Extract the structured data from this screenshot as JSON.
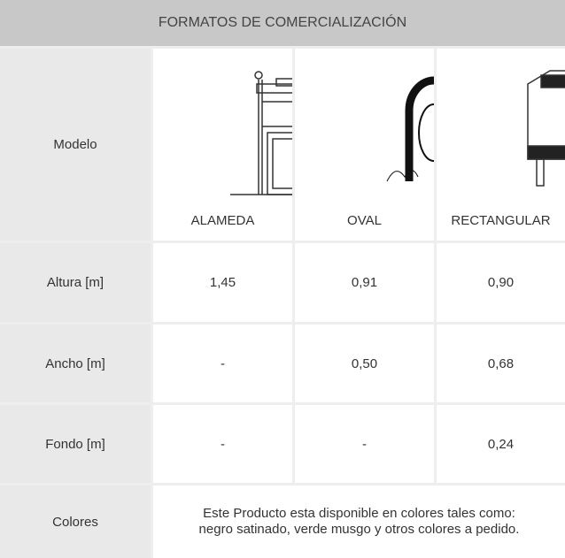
{
  "header": {
    "title": "FORMATOS DE COMERCIALIZACIÓN"
  },
  "table": {
    "rows": [
      {
        "label": "Modelo",
        "cells": [
          "ALAMEDA",
          "OVAL",
          "RECTANGULAR"
        ]
      },
      {
        "label": "Altura [m]",
        "cells": [
          "1,45",
          "0,91",
          "0,90"
        ]
      },
      {
        "label": "Ancho [m]",
        "cells": [
          "-",
          "0,50",
          "0,68"
        ]
      },
      {
        "label": "Fondo [m]",
        "cells": [
          "-",
          "-",
          "0,24"
        ]
      },
      {
        "label": "Colores",
        "note": [
          "Este Producto esta disponible en colores tales como:",
          "negro satinado, verde musgo y otros colores a pedido."
        ]
      }
    ]
  }
}
